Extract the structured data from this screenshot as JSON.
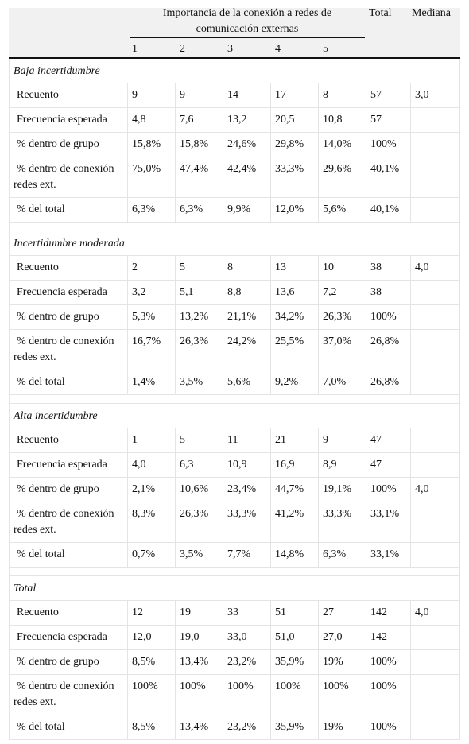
{
  "header": {
    "group_title": "Importancia de la conexión a redes de comunicación externas",
    "columns": [
      "1",
      "2",
      "3",
      "4",
      "5"
    ],
    "total": "Total",
    "median": "Mediana"
  },
  "groups": [
    {
      "title": "Baja incertidumbre",
      "rows": [
        {
          "label": "Recuento",
          "cells": [
            "9",
            "9",
            "14",
            "17",
            "8",
            "57"
          ],
          "median": "3,0"
        },
        {
          "label": "Frecuencia esperada",
          "cells": [
            "4,8",
            "7,6",
            "13,2",
            "20,5",
            "10,8",
            "57"
          ]
        },
        {
          "label": "% dentro de grupo",
          "cells": [
            "15,8%",
            "15,8%",
            "24,6%",
            "29,8%",
            "14,0%",
            "100%"
          ]
        },
        {
          "label": "% dentro de conexión redes ext.",
          "cells": [
            "75,0%",
            "47,4%",
            "42,4%",
            "33,3%",
            "29,6%",
            "40,1%"
          ]
        },
        {
          "label": "% del total",
          "cells": [
            "6,3%",
            "6,3%",
            "9,9%",
            "12,0%",
            "5,6%",
            "40,1%"
          ]
        }
      ]
    },
    {
      "title": "Incertidumbre moderada",
      "rows": [
        {
          "label": "Recuento",
          "cells": [
            "2",
            "5",
            "8",
            "13",
            "10",
            "38"
          ],
          "median": "4,0"
        },
        {
          "label": "Frecuencia esperada",
          "cells": [
            "3,2",
            "5,1",
            "8,8",
            "13,6",
            "7,2",
            "38"
          ]
        },
        {
          "label": "% dentro de grupo",
          "cells": [
            "5,3%",
            "13,2%",
            "21,1%",
            "34,2%",
            "26,3%",
            "100%"
          ]
        },
        {
          "label": "% dentro de conexión redes ext.",
          "cells": [
            "16,7%",
            "26,3%",
            "24,2%",
            "25,5%",
            "37,0%",
            "26,8%"
          ]
        },
        {
          "label": "% del total",
          "cells": [
            "1,4%",
            "3,5%",
            "5,6%",
            "9,2%",
            "7,0%",
            "26,8%"
          ]
        }
      ]
    },
    {
      "title": "Alta incertidumbre",
      "rows": [
        {
          "label": "Recuento",
          "cells": [
            "1",
            "5",
            "11",
            "21",
            "9",
            "47"
          ]
        },
        {
          "label": "Frecuencia esperada",
          "cells": [
            "4,0",
            "6,3",
            "10,9",
            "16,9",
            "8,9",
            "47"
          ]
        },
        {
          "label": "% dentro de grupo",
          "cells": [
            "2,1%",
            "10,6%",
            "23,4%",
            "44,7%",
            "19,1%",
            "100%"
          ],
          "median": "4,0"
        },
        {
          "label": "% dentro de conexión redes ext.",
          "cells": [
            "8,3%",
            "26,3%",
            "33,3%",
            "41,2%",
            "33,3%",
            "33,1%"
          ]
        },
        {
          "label": "% del total",
          "cells": [
            "0,7%",
            "3,5%",
            "7,7%",
            "14,8%",
            "6,3%",
            "33,1%"
          ]
        }
      ]
    },
    {
      "title": "Total",
      "rows": [
        {
          "label": "Recuento",
          "cells": [
            "12",
            "19",
            "33",
            "51",
            "27",
            "142"
          ],
          "median": "4,0"
        },
        {
          "label": "Frecuencia esperada",
          "cells": [
            "12,0",
            "19,0",
            "33,0",
            "51,0",
            "27,0",
            "142"
          ]
        },
        {
          "label": "% dentro de grupo",
          "cells": [
            "8,5%",
            "13,4%",
            "23,2%",
            "35,9%",
            "19%",
            "100%"
          ]
        },
        {
          "label": "% dentro de conexión redes ext.",
          "cells": [
            "100%",
            "100%",
            "100%",
            "100%",
            "100%",
            "100%"
          ]
        },
        {
          "label": "% del total",
          "cells": [
            "8,5%",
            "13,4%",
            "23,2%",
            "35,9%",
            "19%",
            "100%"
          ]
        }
      ]
    }
  ]
}
